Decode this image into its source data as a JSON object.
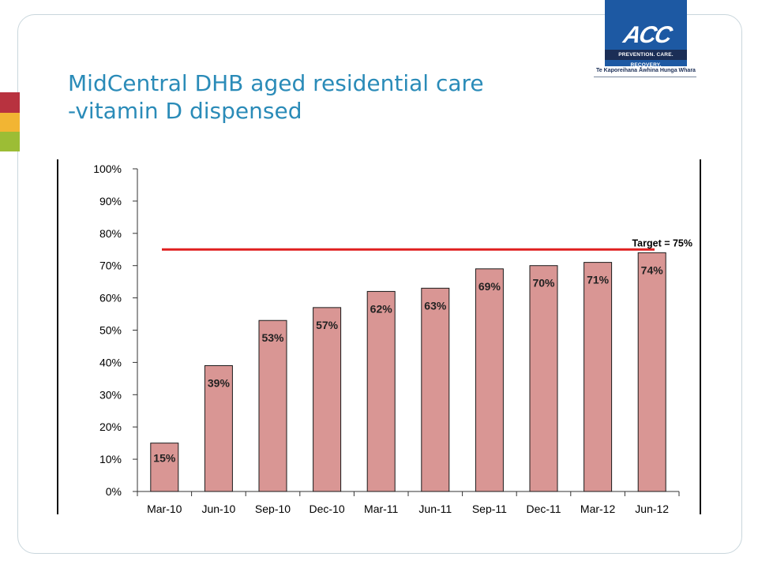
{
  "slide": {
    "title_line1": "MidCentral DHB aged residential care",
    "title_line2": "-vitamin D dispensed"
  },
  "logo": {
    "mark": "ACC",
    "tagline": "PREVENTION. CARE. RECOVERY.",
    "subtitle": "Te Kaporeihana Āwhina Hunga Whara",
    "brand_color": "#1d59a3"
  },
  "colors": {
    "bar_fill": "#d99694",
    "bar_stroke": "#1a1a1a",
    "target_line": "#e02020",
    "title": "#2a8bb8"
  },
  "chart_data": {
    "type": "bar",
    "categories": [
      "Mar-10",
      "Jun-10",
      "Sep-10",
      "Dec-10",
      "Mar-11",
      "Jun-11",
      "Sep-11",
      "Dec-11",
      "Mar-12",
      "Jun-12"
    ],
    "values": [
      15,
      39,
      53,
      57,
      62,
      63,
      69,
      70,
      71,
      74
    ],
    "data_labels": [
      "15%",
      "39%",
      "53%",
      "57%",
      "62%",
      "63%",
      "69%",
      "70%",
      "71%",
      "74%"
    ],
    "y_ticks": [
      "0%",
      "10%",
      "20%",
      "30%",
      "40%",
      "50%",
      "60%",
      "70%",
      "80%",
      "90%",
      "100%"
    ],
    "ylim": [
      0,
      100
    ],
    "grid": false,
    "target": {
      "value": 75,
      "label": "Target = 75%"
    },
    "title": "",
    "xlabel": "",
    "ylabel": ""
  }
}
